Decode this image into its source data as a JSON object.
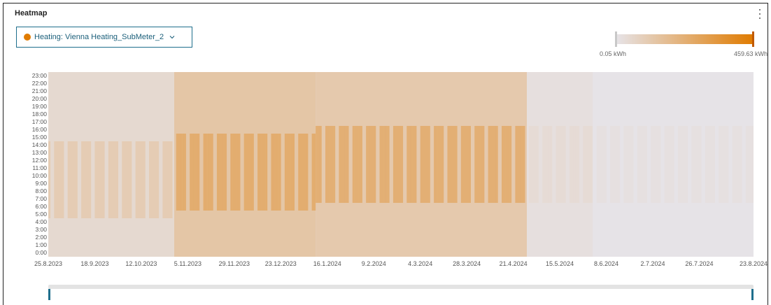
{
  "panel": {
    "title": "Heatmap"
  },
  "selector": {
    "label": "Heating: Vienna Heating_SubMeter_2",
    "color": "#e07b00"
  },
  "legend": {
    "min_label": "0.05 kWh",
    "max_label": "459.63 kWh",
    "color_low": "#e6e3e7",
    "color_high": "#e07b00"
  },
  "chart_data": {
    "type": "heatmap",
    "title": "",
    "xlabel": "",
    "ylabel": "",
    "x_start": "25.8.2023",
    "x_end": "23.8.2024",
    "y_categories": [
      "0:00",
      "1:00",
      "2:00",
      "3:00",
      "4:00",
      "5:00",
      "6:00",
      "7:00",
      "8:00",
      "9:00",
      "10:00",
      "11:00",
      "12:00",
      "13:00",
      "14:00",
      "15:00",
      "16:00",
      "17:00",
      "18:00",
      "19:00",
      "20:00",
      "21:00",
      "22:00",
      "23:00"
    ],
    "x_tick_labels": [
      "25.8.2023",
      "18.9.2023",
      "12.10.2023",
      "5.11.2023",
      "29.11.2023",
      "23.12.2023",
      "16.1.2024",
      "9.2.2024",
      "4.3.2024",
      "28.3.2024",
      "21.4.2024",
      "15.5.2024",
      "8.6.2024",
      "2.7.2024",
      "26.7.2024",
      "23.8.2024"
    ],
    "value_range": [
      0.05,
      459.63
    ],
    "unit": "kWh",
    "periods": [
      {
        "from": "25.8.2023",
        "to": "29.10.2023",
        "night_level": 0.1,
        "day_level": 0.22,
        "day_hours": [
          5,
          14
        ]
      },
      {
        "from": "29.10.2023",
        "to": "10.1.2024",
        "night_level": 0.28,
        "day_level": 0.52,
        "day_hours": [
          6,
          15
        ]
      },
      {
        "from": "10.1.2024",
        "to": "28.4.2024",
        "night_level": 0.25,
        "day_level": 0.5,
        "day_hours": [
          7,
          16
        ]
      },
      {
        "from": "28.4.2024",
        "to": "1.6.2024",
        "night_level": 0.04,
        "day_level": 0.08,
        "day_hours": [
          7,
          16
        ]
      },
      {
        "from": "1.6.2024",
        "to": "23.8.2024",
        "night_level": 0.0,
        "day_level": 0.03,
        "day_hours": [
          7,
          16
        ]
      }
    ]
  },
  "range_slider": {
    "start_fraction": 0.0,
    "end_fraction": 1.0
  }
}
